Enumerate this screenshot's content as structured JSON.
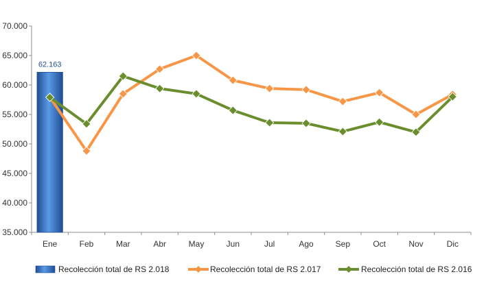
{
  "chart_data": {
    "type": "bar+line",
    "categories": [
      "Ene",
      "Feb",
      "Mar",
      "Abr",
      "May",
      "Jun",
      "Jul",
      "Ago",
      "Sep",
      "Oct",
      "Nov",
      "Dic"
    ],
    "ylim": [
      35000,
      70000
    ],
    "yticks": [
      "35.000",
      "40.000",
      "45.000",
      "50.000",
      "55.000",
      "60.000",
      "65.000",
      "70.000"
    ],
    "ytick_values": [
      35000,
      40000,
      45000,
      50000,
      55000,
      60000,
      65000,
      70000
    ],
    "grid": false,
    "legend_position": "bottom",
    "series": [
      {
        "name": "Recolección total de RS 2.018",
        "type": "bar",
        "color": "#2E6FC9",
        "values": [
          62163,
          null,
          null,
          null,
          null,
          null,
          null,
          null,
          null,
          null,
          null,
          null
        ],
        "data_label": "62.163"
      },
      {
        "name": "Recolección total de RS 2.017",
        "type": "line",
        "color": "#F79646",
        "values": [
          57900,
          48800,
          58500,
          62700,
          65000,
          60800,
          59400,
          59200,
          57200,
          58700,
          55000,
          58400
        ]
      },
      {
        "name": "Recolección total de RS 2.016",
        "type": "line",
        "color": "#6A8E2E",
        "values": [
          57900,
          53400,
          61500,
          59400,
          58500,
          55700,
          53600,
          53500,
          52100,
          53700,
          52000,
          58000
        ]
      }
    ]
  }
}
